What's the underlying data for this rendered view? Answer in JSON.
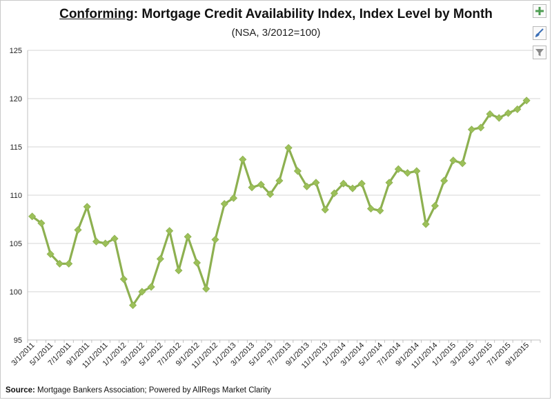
{
  "title": {
    "underlined": "Conforming",
    "rest": ": Mortgage Credit Availability Index, Index Level by Month"
  },
  "subtitle": "(NSA, 3/2012=100)",
  "source": {
    "label": "Source:",
    "text": " Mortgage Bankers Association; Powered by AllRegs Market Clarity"
  },
  "toolbar": {
    "icons": [
      "plus-icon",
      "brush-icon",
      "filter-icon"
    ]
  },
  "chart_data": {
    "type": "line",
    "ylim": [
      95,
      125
    ],
    "yticks": [
      95,
      100,
      105,
      110,
      115,
      120,
      125
    ],
    "grid": true,
    "line_color": "#8db050",
    "marker_color": "#9cc059",
    "marker": "diamond",
    "xtick_labels": [
      "3/1/2011",
      "5/1/2011",
      "7/1/2011",
      "9/1/2011",
      "11/1/2011",
      "1/1/2012",
      "3/1/2012",
      "5/1/2012",
      "7/1/2012",
      "9/1/2012",
      "11/1/2012",
      "1/1/2013",
      "3/1/2013",
      "5/1/2013",
      "7/1/2013",
      "9/1/2013",
      "11/1/2013",
      "1/1/2014",
      "3/1/2014",
      "5/1/2014",
      "7/1/2014",
      "9/1/2014",
      "11/1/2014",
      "1/1/2015",
      "3/1/2015",
      "5/1/2015",
      "7/1/2015",
      "9/1/2015"
    ],
    "x": [
      "3/1/2011",
      "4/1/2011",
      "5/1/2011",
      "6/1/2011",
      "7/1/2011",
      "8/1/2011",
      "9/1/2011",
      "10/1/2011",
      "11/1/2011",
      "12/1/2011",
      "1/1/2012",
      "2/1/2012",
      "3/1/2012",
      "4/1/2012",
      "5/1/2012",
      "6/1/2012",
      "7/1/2012",
      "8/1/2012",
      "9/1/2012",
      "10/1/2012",
      "11/1/2012",
      "12/1/2012",
      "1/1/2013",
      "2/1/2013",
      "3/1/2013",
      "4/1/2013",
      "5/1/2013",
      "6/1/2013",
      "7/1/2013",
      "8/1/2013",
      "9/1/2013",
      "10/1/2013",
      "11/1/2013",
      "12/1/2013",
      "1/1/2014",
      "2/1/2014",
      "3/1/2014",
      "4/1/2014",
      "5/1/2014",
      "6/1/2014",
      "7/1/2014",
      "8/1/2014",
      "9/1/2014",
      "10/1/2014",
      "11/1/2014",
      "12/1/2014",
      "1/1/2015",
      "2/1/2015",
      "3/1/2015",
      "4/1/2015",
      "5/1/2015",
      "6/1/2015",
      "7/1/2015",
      "8/1/2015",
      "9/1/2015",
      "10/1/2015"
    ],
    "values": [
      107.8,
      107.1,
      103.9,
      102.9,
      102.9,
      106.4,
      108.8,
      105.2,
      105.0,
      105.5,
      101.3,
      98.6,
      100.0,
      100.5,
      103.4,
      106.3,
      102.2,
      105.7,
      103.0,
      100.3,
      105.4,
      109.1,
      109.7,
      113.7,
      110.8,
      111.1,
      110.1,
      111.5,
      114.9,
      112.5,
      110.9,
      111.3,
      108.5,
      110.2,
      111.2,
      110.7,
      111.2,
      108.6,
      108.4,
      111.3,
      112.7,
      112.3,
      112.5,
      107.0,
      108.9,
      111.5,
      113.6,
      113.3,
      116.8,
      117.0,
      118.4,
      118.0,
      118.5,
      118.9,
      119.8,
      null
    ]
  }
}
